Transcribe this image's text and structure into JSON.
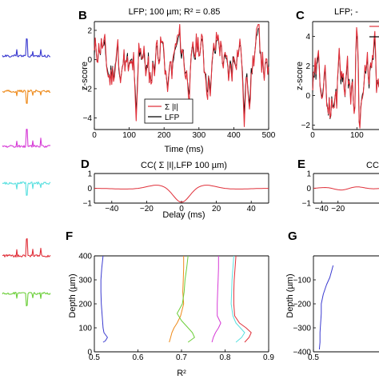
{
  "panel_labels": [
    "B",
    "C",
    "D",
    "E",
    "F",
    "G"
  ],
  "chart_data": [
    {
      "panel": "B",
      "type": "line",
      "title": "LFP; 100 µm; R² = 0.85",
      "xlabel": "Time (ms)",
      "ylabel": "z-score",
      "xlim": [
        0,
        500
      ],
      "ylim": [
        -4.8,
        2.6
      ],
      "xticks": [
        0,
        100,
        200,
        300,
        400,
        500
      ],
      "yticks": [
        -4,
        -2,
        0,
        2
      ],
      "legend": [
        "Σ |I|",
        "LFP"
      ],
      "legend_position": "bottom-left",
      "series_colors": [
        "#e0303a",
        "#000000"
      ]
    },
    {
      "panel": "C",
      "type": "line",
      "title": "LFP; -",
      "ylabel": "z-score",
      "xlim": [
        0,
        150
      ],
      "ylim": [
        -2.3,
        5
      ],
      "xticks": [
        0,
        100
      ],
      "yticks": [
        -2,
        0,
        2,
        4
      ],
      "series_colors": [
        "#e0303a",
        "#000000"
      ]
    },
    {
      "panel": "D",
      "type": "line",
      "title": "CC( Σ |I|,LFP 100 µm)",
      "xlabel": "Delay (ms)",
      "xlim": [
        -50,
        50
      ],
      "ylim": [
        -1,
        1
      ],
      "xticks": [
        -40,
        -20,
        0,
        20,
        40
      ],
      "yticks": [
        -1,
        0,
        1
      ],
      "series_colors": [
        "#e0303a"
      ]
    },
    {
      "panel": "E",
      "type": "line",
      "title": "CC",
      "xlim": [
        -50,
        30
      ],
      "ylim": [
        -1,
        1
      ],
      "xticks": [
        -40,
        -20
      ],
      "yticks": [
        -1,
        0,
        1
      ],
      "series_colors": [
        "#e0303a"
      ]
    },
    {
      "panel": "F",
      "type": "line",
      "xlabel": "R²",
      "ylabel": "Depth (µm)",
      "xlim": [
        0.5,
        0.9
      ],
      "ylim": [
        0,
        400
      ],
      "xticks": [
        0.5,
        0.6,
        0.7,
        0.8,
        0.9
      ],
      "yticks": [
        0,
        100,
        200,
        300,
        400
      ],
      "series": [
        {
          "color": "#3a3ad0",
          "x": [
            0.52,
            0.517,
            0.515,
            0.515,
            0.516,
            0.518,
            0.52,
            0.522,
            0.53,
            0.525,
            0.52
          ],
          "y": [
            400,
            350,
            300,
            250,
            200,
            150,
            100,
            80,
            60,
            45,
            40
          ]
        },
        {
          "color": "#ee8a1a",
          "x": [
            0.705,
            0.705,
            0.704,
            0.703,
            0.705,
            0.698,
            0.69,
            0.683,
            0.678,
            0.675,
            0.672
          ],
          "y": [
            400,
            350,
            300,
            250,
            200,
            150,
            120,
            100,
            80,
            60,
            40
          ]
        },
        {
          "color": "#6ccf3a",
          "x": [
            0.715,
            0.712,
            0.708,
            0.706,
            0.702,
            0.69,
            0.7,
            0.715,
            0.725,
            0.73,
            0.715
          ],
          "y": [
            400,
            350,
            300,
            250,
            200,
            160,
            130,
            100,
            80,
            60,
            40
          ]
        },
        {
          "color": "#d63ad6",
          "x": [
            0.785,
            0.785,
            0.784,
            0.783,
            0.782,
            0.782,
            0.79,
            0.785,
            0.778,
            0.773,
            0.77
          ],
          "y": [
            400,
            350,
            300,
            250,
            200,
            150,
            120,
            100,
            80,
            60,
            40
          ]
        },
        {
          "color": "#5ae0e0",
          "x": [
            0.82,
            0.818,
            0.816,
            0.815,
            0.814,
            0.818,
            0.825,
            0.835,
            0.845,
            0.838,
            0.825
          ],
          "y": [
            400,
            350,
            300,
            250,
            200,
            150,
            120,
            100,
            80,
            60,
            40
          ]
        },
        {
          "color": "#e0303a",
          "x": [
            0.825,
            0.823,
            0.821,
            0.82,
            0.82,
            0.822,
            0.833,
            0.848,
            0.86,
            0.855,
            0.845
          ],
          "y": [
            400,
            350,
            300,
            250,
            200,
            150,
            120,
            100,
            80,
            60,
            40
          ]
        }
      ]
    },
    {
      "panel": "G",
      "type": "line",
      "ylabel": "Depth (µm)",
      "xlim": [
        0.5,
        0.6
      ],
      "ylim": [
        -400,
        0
      ],
      "xticks": [
        0.5
      ],
      "yticks": [
        -400,
        -300,
        -200,
        -100
      ],
      "series": [
        {
          "color": "#3a3ad0",
          "x": [
            0.53,
            0.528,
            0.525,
            0.52,
            0.515,
            0.512,
            0.512,
            0.511,
            0.51,
            0.51,
            0.509
          ],
          "y": [
            -40,
            -60,
            -90,
            -120,
            -160,
            -200,
            -240,
            -280,
            -320,
            -360,
            -390
          ]
        }
      ]
    }
  ],
  "left_traces": [
    {
      "color": "#3a3ad0"
    },
    {
      "color": "#ee8a1a"
    },
    {
      "color": "#d63ad6"
    },
    {
      "color": "#5ae0e0"
    },
    {
      "color": "#e0303a"
    },
    {
      "color": "#6ccf3a"
    }
  ]
}
